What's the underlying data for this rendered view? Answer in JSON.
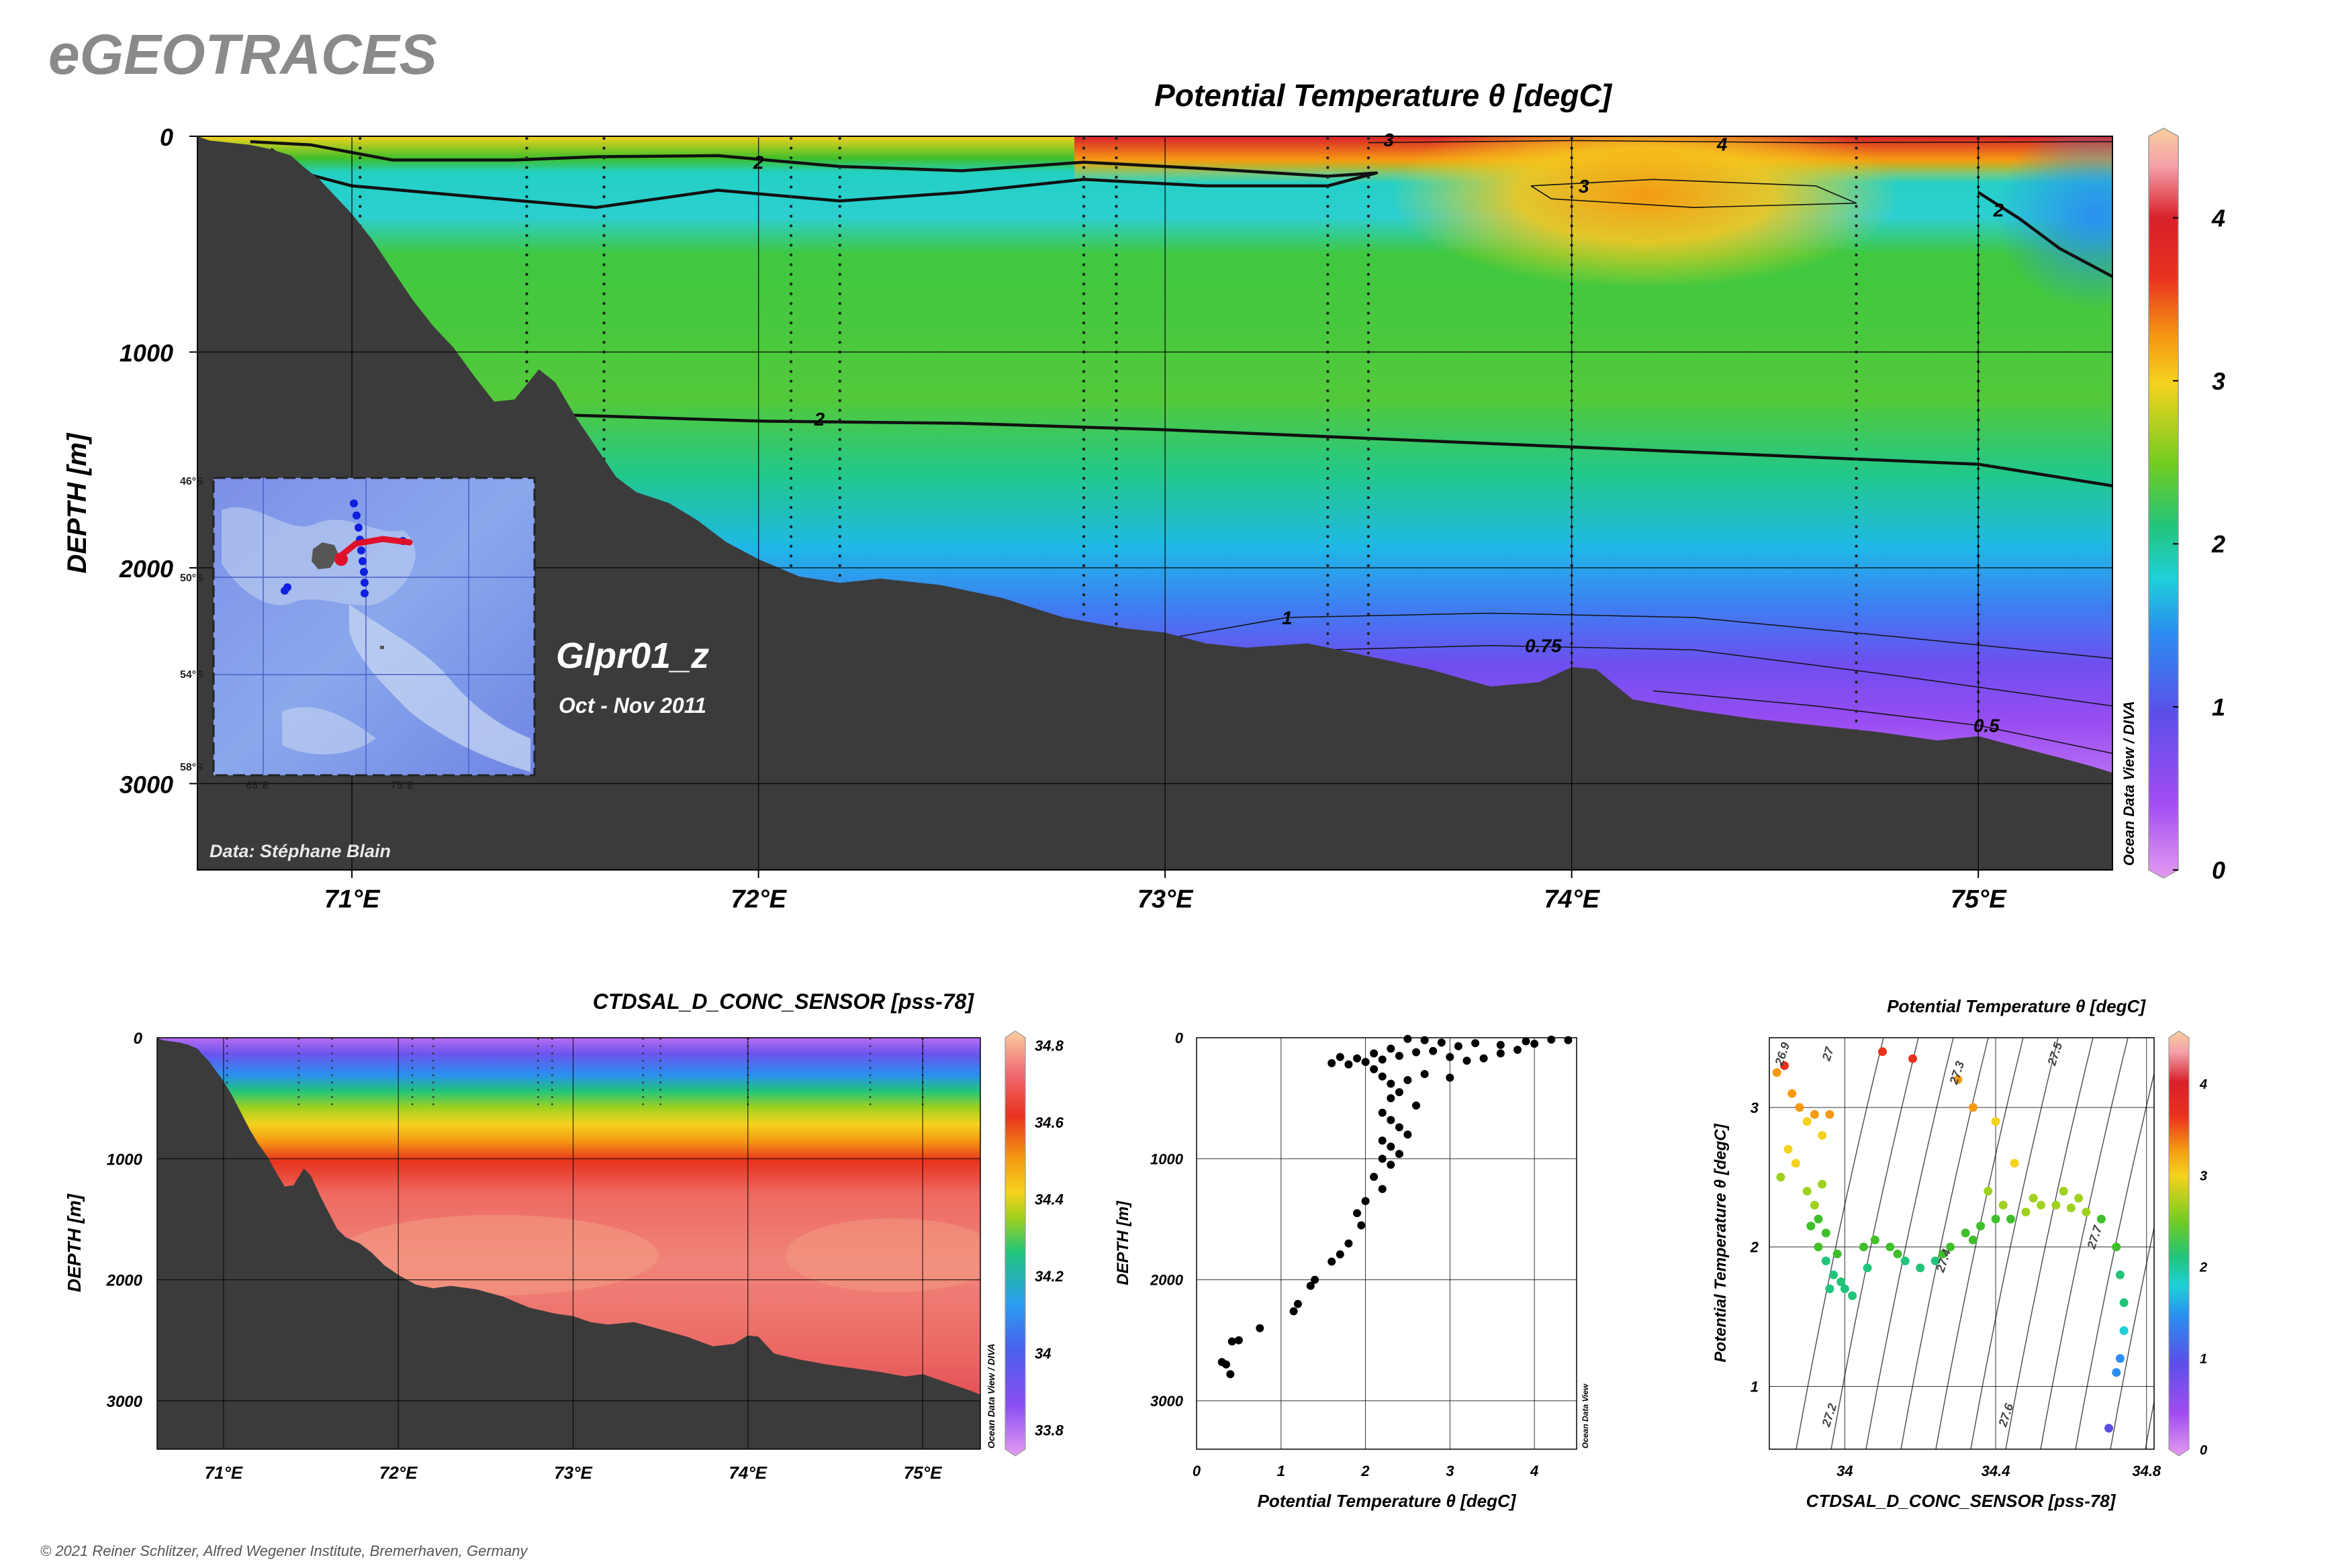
{
  "site_title": "eGEOTRACES",
  "copyright": "© 2021 Reiner Schlitzer, Alfred Wegener Institute, Bremerhaven, Germany",
  "watermark": "Ocean Data View / DIVA",
  "watermark_short": "Ocean Data View",
  "section": {
    "name": "GIpr01_z",
    "period": "Oct - Nov 2011",
    "data_credit": "Data: Stéphane Blain"
  },
  "colors": {
    "land": "#3b3b3b",
    "contour": "#111111",
    "palette": [
      "#e59af0",
      "#a24cf2",
      "#5b4fe8",
      "#2a8ff0",
      "#1fd0d8",
      "#22c47a",
      "#3fbf2a",
      "#9fd11e",
      "#f5d21e",
      "#f59a12",
      "#e8321e",
      "#d8202a",
      "#f4a0a8",
      "#f9cfa0"
    ]
  },
  "chart_data": [
    {
      "id": "theta-section",
      "type": "heatmap",
      "title": "Potential Temperature θ [degC]",
      "ylabel": "DEPTH [m]",
      "xlabel": "",
      "x_range": [
        70.62,
        75.33
      ],
      "y_range": [
        0,
        3400
      ],
      "x_ticks": [
        71,
        72,
        73,
        74,
        75
      ],
      "x_tick_labels": [
        "71°E",
        "72°E",
        "73°E",
        "74°E",
        "75°E"
      ],
      "y_ticks": [
        0,
        1000,
        2000,
        3000
      ],
      "y_tick_labels": [
        "0",
        "1000",
        "2000",
        "3000"
      ],
      "colorbar": {
        "min": 0,
        "max": 4.5,
        "ticks": [
          0,
          1,
          2,
          3,
          4
        ],
        "tick_labels": [
          "0",
          "1",
          "2",
          "3",
          "4"
        ]
      },
      "contour_labels": [
        "2",
        "2",
        "3",
        "4",
        "3",
        "2",
        "1",
        "0.75",
        "0.5"
      ],
      "station_longitudes": [
        71.02,
        71.43,
        71.62,
        72.08,
        72.2,
        72.8,
        72.88,
        73.4,
        73.5,
        74.0,
        74.7,
        75.0
      ]
    },
    {
      "id": "salinity-section",
      "type": "heatmap",
      "title": "CTDSAL_D_CONC_SENSOR [pss-78]",
      "ylabel": "DEPTH [m]",
      "xlabel": "",
      "x_range": [
        70.62,
        75.33
      ],
      "y_range": [
        0,
        3400
      ],
      "x_ticks": [
        71,
        72,
        73,
        74,
        75
      ],
      "x_tick_labels": [
        "71°E",
        "72°E",
        "73°E",
        "74°E",
        "75°E"
      ],
      "y_ticks": [
        0,
        1000,
        2000,
        3000
      ],
      "y_tick_labels": [
        "0",
        "1000",
        "2000",
        "3000"
      ],
      "colorbar": {
        "min": 33.75,
        "max": 34.82,
        "ticks": [
          33.8,
          34,
          34.2,
          34.4,
          34.6,
          34.8
        ],
        "tick_labels": [
          "33.8",
          "34",
          "34.2",
          "34.4",
          "34.6",
          "34.8"
        ]
      }
    },
    {
      "id": "theta-profile",
      "type": "scatter",
      "title": "",
      "xlabel": "Potential Temperature θ [degC]",
      "ylabel": "DEPTH [m]",
      "x_range": [
        0,
        4.5
      ],
      "y_range": [
        0,
        3400
      ],
      "x_ticks": [
        0,
        1,
        2,
        3,
        4
      ],
      "y_ticks": [
        0,
        1000,
        2000,
        3000
      ],
      "points": [
        [
          4.4,
          20
        ],
        [
          4.2,
          15
        ],
        [
          3.9,
          30
        ],
        [
          3.6,
          60
        ],
        [
          3.3,
          45
        ],
        [
          3.1,
          70
        ],
        [
          2.9,
          40
        ],
        [
          2.7,
          20
        ],
        [
          2.5,
          10
        ],
        [
          2.3,
          90
        ],
        [
          2.1,
          130
        ],
        [
          1.9,
          170
        ],
        [
          1.7,
          160
        ],
        [
          1.6,
          210
        ],
        [
          1.8,
          220
        ],
        [
          2.0,
          200
        ],
        [
          2.2,
          180
        ],
        [
          2.4,
          150
        ],
        [
          2.6,
          120
        ],
        [
          2.8,
          110
        ],
        [
          3.0,
          160
        ],
        [
          3.2,
          190
        ],
        [
          3.4,
          170
        ],
        [
          3.6,
          130
        ],
        [
          3.8,
          100
        ],
        [
          4.0,
          50
        ],
        [
          2.1,
          260
        ],
        [
          2.2,
          320
        ],
        [
          2.3,
          380
        ],
        [
          2.5,
          350
        ],
        [
          2.7,
          300
        ],
        [
          3.0,
          330
        ],
        [
          2.4,
          450
        ],
        [
          2.3,
          500
        ],
        [
          2.6,
          560
        ],
        [
          2.2,
          620
        ],
        [
          2.3,
          680
        ],
        [
          2.4,
          740
        ],
        [
          2.5,
          800
        ],
        [
          2.2,
          850
        ],
        [
          2.3,
          900
        ],
        [
          2.4,
          960
        ],
        [
          2.2,
          1000
        ],
        [
          2.3,
          1050
        ],
        [
          2.1,
          1150
        ],
        [
          2.2,
          1250
        ],
        [
          2.0,
          1350
        ],
        [
          1.9,
          1450
        ],
        [
          1.95,
          1550
        ],
        [
          1.8,
          1700
        ],
        [
          1.7,
          1790
        ],
        [
          1.6,
          1850
        ],
        [
          1.4,
          2000
        ],
        [
          1.35,
          2050
        ],
        [
          1.2,
          2200
        ],
        [
          1.15,
          2260
        ],
        [
          0.75,
          2400
        ],
        [
          0.5,
          2500
        ],
        [
          0.42,
          2510
        ],
        [
          0.35,
          2700
        ],
        [
          0.3,
          2680
        ],
        [
          0.4,
          2780
        ]
      ]
    },
    {
      "id": "ts-diagram",
      "type": "scatter",
      "title": "Potential Temperature θ [degC]",
      "xlabel": "CTDSAL_D_CONC_SENSOR [pss-78]",
      "ylabel": "Potential Temperature θ [degC]",
      "x_range": [
        33.8,
        34.82
      ],
      "y_range": [
        0.55,
        3.5
      ],
      "x_ticks": [
        34,
        34.4,
        34.8
      ],
      "x_tick_labels": [
        "34",
        "34.4",
        "34.8"
      ],
      "y_ticks": [
        1,
        2,
        3
      ],
      "y_tick_labels": [
        "1",
        "2",
        "3"
      ],
      "colorbar": {
        "min": 0,
        "max": 4.5,
        "ticks": [
          0,
          1,
          2,
          3,
          4
        ],
        "tick_labels": [
          "0",
          "1",
          "2",
          "3",
          "4"
        ]
      },
      "isopycnal_labels": [
        "26.9",
        "27",
        "27.2",
        "27.3",
        "27.4",
        "27.5",
        "27.6",
        "27.7"
      ],
      "points": [
        [
          33.82,
          3.25
        ],
        [
          33.84,
          3.3
        ],
        [
          33.86,
          3.1
        ],
        [
          33.88,
          3.0
        ],
        [
          33.9,
          2.9
        ],
        [
          33.92,
          2.95
        ],
        [
          33.94,
          2.8
        ],
        [
          33.96,
          2.95
        ],
        [
          33.83,
          2.5
        ],
        [
          33.85,
          2.7
        ],
        [
          33.87,
          2.6
        ],
        [
          33.9,
          2.4
        ],
        [
          33.92,
          2.3
        ],
        [
          33.93,
          2.2
        ],
        [
          33.95,
          2.1
        ],
        [
          33.94,
          2.45
        ],
        [
          33.91,
          2.15
        ],
        [
          33.93,
          2.0
        ],
        [
          33.95,
          1.9
        ],
        [
          33.97,
          1.8
        ],
        [
          33.99,
          1.75
        ],
        [
          34.0,
          1.7
        ],
        [
          34.02,
          1.65
        ],
        [
          33.98,
          1.95
        ],
        [
          34.05,
          2.0
        ],
        [
          34.08,
          2.05
        ],
        [
          34.12,
          2.0
        ],
        [
          34.16,
          1.9
        ],
        [
          34.2,
          1.85
        ],
        [
          34.24,
          1.9
        ],
        [
          34.28,
          2.0
        ],
        [
          34.32,
          2.1
        ],
        [
          34.36,
          2.15
        ],
        [
          34.4,
          2.2
        ],
        [
          34.44,
          2.2
        ],
        [
          34.48,
          2.25
        ],
        [
          34.52,
          2.3
        ],
        [
          34.56,
          2.3
        ],
        [
          34.6,
          2.28
        ],
        [
          34.64,
          2.25
        ],
        [
          34.68,
          2.2
        ],
        [
          34.72,
          2.0
        ],
        [
          34.73,
          1.8
        ],
        [
          34.74,
          1.6
        ],
        [
          34.74,
          1.4
        ],
        [
          34.73,
          1.2
        ],
        [
          34.72,
          1.1
        ],
        [
          34.7,
          0.7
        ],
        [
          34.1,
          3.4
        ],
        [
          34.18,
          3.35
        ],
        [
          34.3,
          3.2
        ],
        [
          34.34,
          3.0
        ],
        [
          34.4,
          2.9
        ],
        [
          34.45,
          2.6
        ],
        [
          34.38,
          2.4
        ],
        [
          34.58,
          2.4
        ],
        [
          34.62,
          2.35
        ],
        [
          34.5,
          2.35
        ],
        [
          34.42,
          2.3
        ],
        [
          34.34,
          2.05
        ],
        [
          34.26,
          1.95
        ],
        [
          34.14,
          1.95
        ],
        [
          34.06,
          1.85
        ],
        [
          33.96,
          1.7
        ]
      ]
    }
  ]
}
